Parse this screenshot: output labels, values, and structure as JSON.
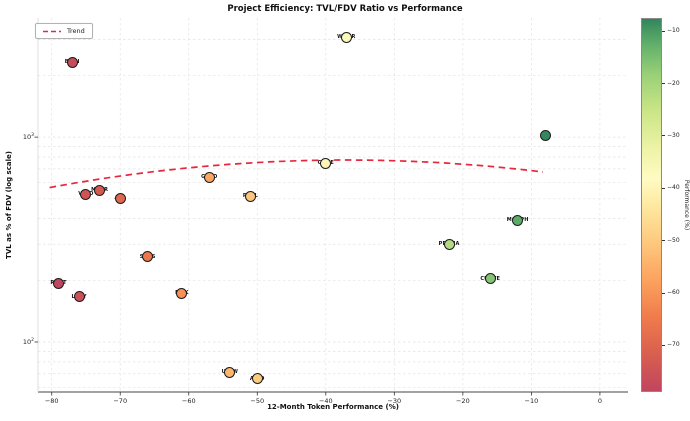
{
  "chart_data": {
    "type": "scatter",
    "title": "Project Efficiency: TVL/FDV Ratio vs Performance",
    "xlabel": "12-Month Token Performance (%)",
    "ylabel": "TVL as % of FDV (log scale)",
    "legend_label": "Trend",
    "xlim": [
      -82,
      4.1
    ],
    "ylim": [
      57,
      3815
    ],
    "x_ticks": [
      -80,
      -70,
      -60,
      -50,
      -40,
      -30,
      -20,
      -10,
      0
    ],
    "y_ticks": [
      {
        "value": 1000,
        "exp": 3
      },
      {
        "value": 100,
        "exp": 2
      }
    ],
    "grid": true,
    "points": [
      {
        "label": "BION",
        "x": -77,
        "y": 2320
      },
      {
        "label": "WNDR",
        "x": -37,
        "y": 3080
      },
      {
        "label": "",
        "x": -8,
        "y": 1020
      },
      {
        "label": "VELO",
        "x": -75,
        "y": 527
      },
      {
        "label": "MAVR",
        "x": -73,
        "y": 551
      },
      {
        "label": "AXL",
        "x": -70,
        "y": 504
      },
      {
        "label": "GEKO",
        "x": -57,
        "y": 638
      },
      {
        "label": "GAGE",
        "x": -40,
        "y": 747
      },
      {
        "label": "PRCL",
        "x": -51,
        "y": 515
      },
      {
        "label": "MORPH",
        "x": -12,
        "y": 393
      },
      {
        "label": "PRSMA",
        "x": -22,
        "y": 300
      },
      {
        "label": "CURVE",
        "x": -16,
        "y": 203
      },
      {
        "label": "SYNS",
        "x": -66,
        "y": 260
      },
      {
        "label": "RDNT",
        "x": -79,
        "y": 194
      },
      {
        "label": "LQTY",
        "x": -76,
        "y": 166
      },
      {
        "label": "EPIK",
        "x": -61,
        "y": 173
      },
      {
        "label": "UNIW",
        "x": -54,
        "y": 71
      },
      {
        "label": "ALTO",
        "x": -50,
        "y": 66
      }
    ],
    "trend": {
      "style": "dashed",
      "color": "#e8273f",
      "log10_coeffs": [
        2.791,
        -0.00527,
        -7.14e-05
      ],
      "x_range": [
        -80.3,
        -7.3
      ]
    },
    "colorbar": {
      "label": "Performance (%)",
      "ticks": [
        -10,
        -20,
        -30,
        -40,
        -50,
        -60,
        -70
      ],
      "vmin": -79,
      "vmax": -7.6,
      "colormap": "RdYlGn",
      "stops": [
        {
          "u": 0.0,
          "color": "#c0455e"
        },
        {
          "u": 0.1,
          "color": "#d95f4f"
        },
        {
          "u": 0.2,
          "color": "#f07c4c"
        },
        {
          "u": 0.3,
          "color": "#fca35e"
        },
        {
          "u": 0.4,
          "color": "#fdc97e"
        },
        {
          "u": 0.5,
          "color": "#fee9a2"
        },
        {
          "u": 0.57,
          "color": "#fffbc2"
        },
        {
          "u": 0.65,
          "color": "#eef3a7"
        },
        {
          "u": 0.75,
          "color": "#cbe687"
        },
        {
          "u": 0.85,
          "color": "#9ad077"
        },
        {
          "u": 0.93,
          "color": "#63b06b"
        },
        {
          "u": 1.0,
          "color": "#31855c"
        }
      ]
    }
  }
}
